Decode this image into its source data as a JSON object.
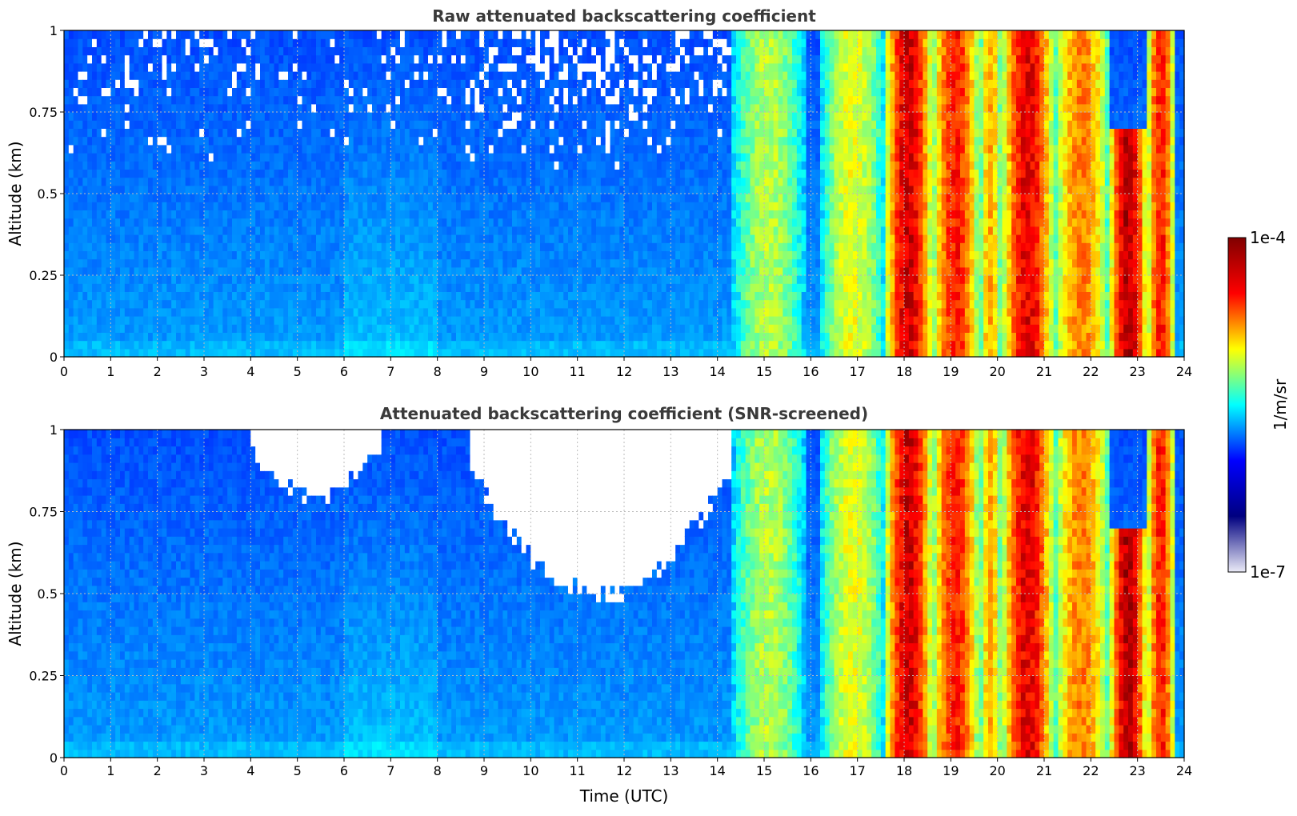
{
  "chart_data": [
    {
      "type": "heatmap",
      "title": "Raw attenuated backscattering coefficient",
      "ylabel": "Altitude (km)",
      "xlabel": "",
      "xlim": [
        0,
        24
      ],
      "ylim": [
        0,
        1
      ],
      "xticks": [
        "0",
        "1",
        "2",
        "3",
        "4",
        "5",
        "6",
        "7",
        "8",
        "9",
        "10",
        "11",
        "12",
        "13",
        "14",
        "15",
        "16",
        "17",
        "18",
        "19",
        "20",
        "21",
        "22",
        "23",
        "24"
      ],
      "yticks": [
        "0",
        "0.25",
        "0.5",
        "0.75",
        "1"
      ],
      "grid": true,
      "colorscale": "jet",
      "screened": false,
      "cloud_bands": [
        {
          "x": [
            14.3,
            15.9
          ],
          "level": 0.55,
          "top": 1.0
        },
        {
          "x": [
            16.2,
            17.6
          ],
          "level": 0.6,
          "top": 1.0
        },
        {
          "x": [
            17.6,
            18.6
          ],
          "level": 0.92,
          "top": 1.0
        },
        {
          "x": [
            18.6,
            19.6
          ],
          "level": 0.85,
          "top": 1.0
        },
        {
          "x": [
            19.6,
            20.1
          ],
          "level": 0.7,
          "top": 1.0
        },
        {
          "x": [
            20.1,
            21.2
          ],
          "level": 0.9,
          "top": 1.0
        },
        {
          "x": [
            21.2,
            22.4
          ],
          "level": 0.75,
          "top": 1.0
        },
        {
          "x": [
            22.4,
            23.2
          ],
          "level": 0.95,
          "top": 0.7
        },
        {
          "x": [
            23.2,
            23.8
          ],
          "level": 0.85,
          "top": 1.0
        }
      ]
    },
    {
      "type": "heatmap",
      "title": "Attenuated backscattering coefficient (SNR-screened)",
      "ylabel": "Altitude (km)",
      "xlabel": "Time (UTC)",
      "xlim": [
        0,
        24
      ],
      "ylim": [
        0,
        1
      ],
      "xticks": [
        "0",
        "1",
        "2",
        "3",
        "4",
        "5",
        "6",
        "7",
        "8",
        "9",
        "10",
        "11",
        "12",
        "13",
        "14",
        "15",
        "16",
        "17",
        "18",
        "19",
        "20",
        "21",
        "22",
        "23",
        "24"
      ],
      "yticks": [
        "0",
        "0.25",
        "0.5",
        "0.75",
        "1"
      ],
      "grid": true,
      "colorscale": "jet",
      "screened": true,
      "cloud_bands": [
        {
          "x": [
            14.3,
            15.9
          ],
          "level": 0.55,
          "top": 1.0
        },
        {
          "x": [
            16.2,
            17.6
          ],
          "level": 0.6,
          "top": 1.0
        },
        {
          "x": [
            17.6,
            18.6
          ],
          "level": 0.92,
          "top": 1.0
        },
        {
          "x": [
            18.6,
            19.6
          ],
          "level": 0.85,
          "top": 1.0
        },
        {
          "x": [
            19.6,
            20.1
          ],
          "level": 0.7,
          "top": 1.0
        },
        {
          "x": [
            20.1,
            21.2
          ],
          "level": 0.9,
          "top": 1.0
        },
        {
          "x": [
            21.2,
            22.4
          ],
          "level": 0.75,
          "top": 1.0
        },
        {
          "x": [
            22.4,
            23.2
          ],
          "level": 0.95,
          "top": 0.7
        },
        {
          "x": [
            23.2,
            23.8
          ],
          "level": 0.85,
          "top": 1.0
        }
      ],
      "screened_regions": [
        {
          "x": [
            4.0,
            6.8
          ],
          "from": 0.8
        },
        {
          "x": [
            8.7,
            14.3
          ],
          "from": 0.5
        }
      ]
    }
  ],
  "colorbar": {
    "max_label": "1e-4",
    "min_label": "1e-7",
    "unit_label": "1/m/sr",
    "colors": [
      "#ebebf7",
      "#000080",
      "#0000ff",
      "#00ffff",
      "#ffff00",
      "#ff0000",
      "#800000"
    ]
  }
}
